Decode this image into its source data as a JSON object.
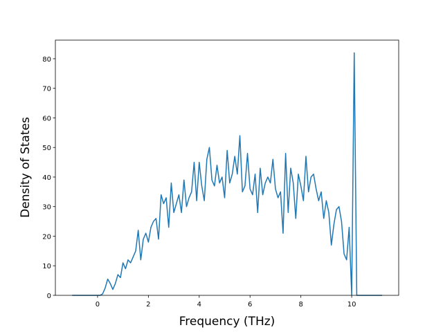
{
  "chart_data": {
    "type": "line",
    "x_label": "Frequency (THz)",
    "y_label": "Density of States",
    "color": "#1f77b4",
    "x": [
      -1.0,
      -0.9,
      -0.8,
      -0.7,
      -0.6,
      -0.5,
      -0.4,
      -0.3,
      -0.2,
      -0.1,
      0.0,
      0.1,
      0.2,
      0.3,
      0.4,
      0.5,
      0.6,
      0.7,
      0.8,
      0.9,
      1.0,
      1.1,
      1.2,
      1.3,
      1.4,
      1.5,
      1.6,
      1.7,
      1.8,
      1.9,
      2.0,
      2.1,
      2.2,
      2.3,
      2.4,
      2.5,
      2.6,
      2.7,
      2.8,
      2.9,
      3.0,
      3.1,
      3.2,
      3.3,
      3.4,
      3.5,
      3.6,
      3.7,
      3.8,
      3.9,
      4.0,
      4.1,
      4.2,
      4.3,
      4.4,
      4.5,
      4.6,
      4.7,
      4.8,
      4.9,
      5.0,
      5.1,
      5.2,
      5.3,
      5.4,
      5.5,
      5.6,
      5.7,
      5.8,
      5.9,
      6.0,
      6.1,
      6.2,
      6.3,
      6.4,
      6.5,
      6.6,
      6.7,
      6.8,
      6.9,
      7.0,
      7.1,
      7.2,
      7.3,
      7.4,
      7.5,
      7.6,
      7.7,
      7.8,
      7.9,
      8.0,
      8.1,
      8.2,
      8.3,
      8.4,
      8.5,
      8.6,
      8.7,
      8.8,
      8.9,
      9.0,
      9.1,
      9.2,
      9.3,
      9.4,
      9.5,
      9.6,
      9.7,
      9.8,
      9.9,
      10.0,
      10.1,
      10.2,
      10.3,
      10.4,
      10.5,
      10.6,
      10.7,
      10.8,
      10.9,
      11.0,
      11.1,
      11.2
    ],
    "values": [
      0,
      0,
      0,
      0,
      0,
      0,
      0,
      0,
      0,
      0,
      0,
      0,
      0.5,
      2.5,
      5.5,
      4,
      2,
      4,
      7,
      6,
      11,
      9,
      12,
      11,
      13,
      15,
      22,
      12,
      19,
      21,
      18,
      23,
      25,
      26,
      19,
      34,
      31,
      33,
      23,
      38,
      28,
      31,
      34,
      28,
      39,
      30,
      33,
      35,
      45,
      32,
      45,
      37,
      32,
      46,
      50,
      39,
      37,
      44,
      38,
      40,
      33,
      49,
      38,
      41,
      47,
      41,
      54,
      35,
      37,
      48,
      36,
      34,
      41,
      28,
      43,
      34,
      38,
      40,
      38,
      46,
      36,
      33,
      35,
      21,
      48,
      28,
      43,
      38,
      26,
      41,
      37,
      32,
      47,
      35,
      40,
      41,
      36,
      32,
      35,
      26,
      32,
      28,
      17,
      24,
      29,
      30,
      25,
      14,
      12,
      23,
      0,
      82,
      0,
      0,
      0,
      0,
      0,
      0,
      0,
      0,
      0,
      0,
      0
    ],
    "xlim": [
      -1.66,
      11.85
    ],
    "ylim": [
      0,
      86.3
    ],
    "xticks": [
      0,
      2,
      4,
      6,
      8,
      10
    ],
    "yticks": [
      0,
      10,
      20,
      30,
      40,
      50,
      60,
      70,
      80
    ]
  }
}
